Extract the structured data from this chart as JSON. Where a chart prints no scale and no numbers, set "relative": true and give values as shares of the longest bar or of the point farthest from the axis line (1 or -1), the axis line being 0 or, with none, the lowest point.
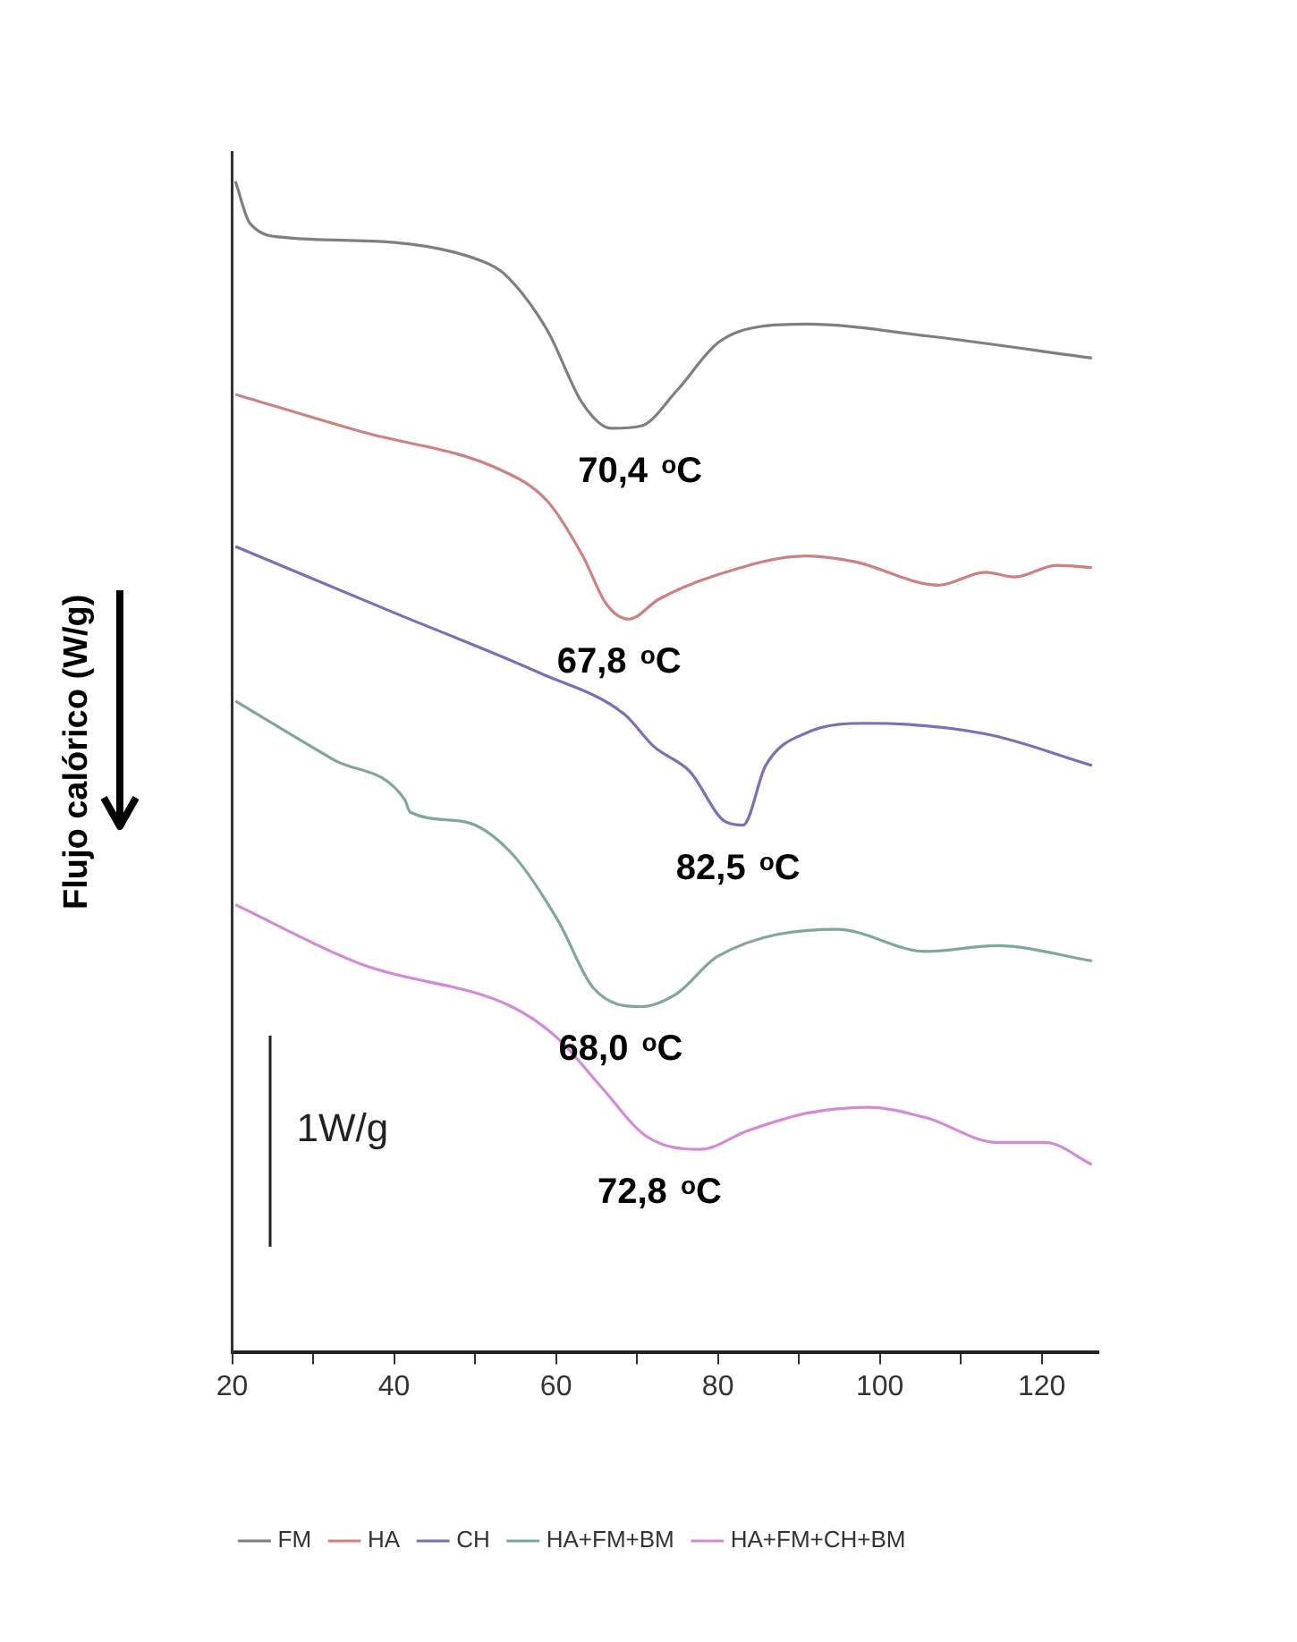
{
  "chart_data": {
    "type": "line",
    "ylabel": "Flujo calórico (W/g)",
    "relative": true,
    "xlim": [
      20,
      127
    ],
    "xticks": [
      20,
      {
        "value": 30,
        "label": null
      },
      40,
      {
        "value": 50,
        "label": null
      },
      60,
      {
        "value": 70,
        "label": null
      },
      80,
      {
        "value": 90,
        "label": null
      },
      100,
      {
        "value": 110,
        "label": null
      },
      120
    ],
    "grid": false,
    "legend": "bottom",
    "marker": "none",
    "line_style": "solid",
    "series": [
      {
        "name": "FM",
        "color": "#7f7f7f",
        "x": [
          20.4,
          22.2,
          26.6,
          39.8,
          50.8,
          53.6,
          58.9,
          63.3,
          66.8,
          70.5,
          74.9,
          80.0,
          85.3,
          91.0,
          105.7,
          126.2
        ],
        "values": [
          1.0,
          0.964,
          0.952,
          0.948,
          0.932,
          0.921,
          0.873,
          0.81,
          0.789,
          0.791,
          0.821,
          0.862,
          0.876,
          0.878,
          0.868,
          0.849
        ]
      },
      {
        "name": "HA",
        "color": "#d08080",
        "x": [
          20.4,
          36.0,
          53.0,
          58.9,
          63.3,
          66.2,
          69.0,
          72.7,
          80.0,
          91.0,
          96.9,
          107.3,
          113.0,
          116.7,
          121.8,
          126.2
        ],
        "values": [
          0.818,
          0.786,
          0.754,
          0.727,
          0.68,
          0.639,
          0.626,
          0.643,
          0.664,
          0.68,
          0.675,
          0.655,
          0.666,
          0.662,
          0.672,
          0.67
        ]
      },
      {
        "name": "CH",
        "color": "#7b6fb8",
        "x": [
          20.4,
          39.8,
          58.0,
          68.4,
          72.1,
          76.5,
          80.9,
          83.1,
          85.9,
          91.0,
          98.5,
          113.0,
          126.2
        ],
        "values": [
          0.688,
          0.632,
          0.58,
          0.545,
          0.517,
          0.496,
          0.453,
          0.45,
          0.501,
          0.529,
          0.537,
          0.528,
          0.501
        ]
      },
      {
        "name": "HA+FM+BM",
        "color": "#7fa89a",
        "x": [
          20.4,
          32.5,
          41.3,
          42.0,
          48.6,
          54.5,
          60.2,
          64.6,
          70.5,
          74.9,
          80.0,
          94.7,
          105.7,
          114.5,
          126.2
        ],
        "values": [
          0.556,
          0.506,
          0.472,
          0.461,
          0.453,
          0.426,
          0.369,
          0.311,
          0.295,
          0.306,
          0.338,
          0.361,
          0.342,
          0.347,
          0.334
        ]
      },
      {
        "name": "HA+FM+CH+BM",
        "color": "#d48ad8",
        "x": [
          20.4,
          36.0,
          54.5,
          60.2,
          65.5,
          71.2,
          77.8,
          83.7,
          91.0,
          98.5,
          105.7,
          114.5,
          120.4,
          126.2
        ],
        "values": [
          0.382,
          0.331,
          0.295,
          0.268,
          0.227,
          0.184,
          0.173,
          0.189,
          0.204,
          0.209,
          0.2,
          0.179,
          0.179,
          0.16
        ]
      }
    ],
    "annotations": [
      {
        "text": "70,4 $^{o}$C",
        "x": 70.4,
        "y": 0.789
      },
      {
        "text": "67,8 $^{o}$C",
        "x": 67.8,
        "y": 0.626
      },
      {
        "text": "82,5 $^{o}$C",
        "x": 82.5,
        "y": 0.45
      },
      {
        "text": "68,0 $^{o}$C",
        "x": 68.0,
        "y": 0.295
      },
      {
        "text": "72,8 $^{o}$C",
        "x": 72.8,
        "y": 0.173
      },
      "1W/g"
    ]
  }
}
